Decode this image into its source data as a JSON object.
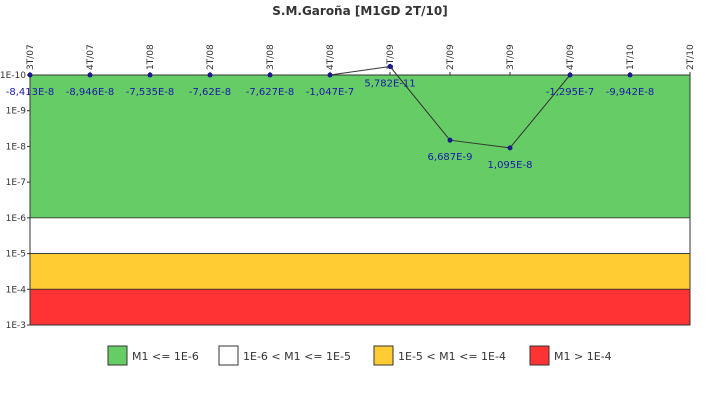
{
  "chart_data": {
    "type": "line",
    "title": "S.M.Garoña [M1GD 2T/10]",
    "x_categories": [
      "3T/07",
      "4T/07",
      "1T/08",
      "2T/08",
      "3T/08",
      "4T/08",
      "1T/09",
      "2T/09",
      "3T/09",
      "4T/09",
      "1T/10",
      "2T/10"
    ],
    "y_scale": "log",
    "y_axis_reversed": true,
    "y_ticks": [
      "1E-10",
      "1E-9",
      "1E-8",
      "1E-7",
      "1E-6",
      "1E-5",
      "1E-4",
      "1E-3"
    ],
    "ylim": [
      1e-10,
      0.001
    ],
    "grid": false,
    "series": [
      {
        "values": [
          -8.413e-08,
          -8.946e-08,
          -7.535e-08,
          -7.62e-08,
          -7.627e-08,
          -1.047e-07,
          5.782e-11,
          6.687e-09,
          1.095e-08,
          -1.295e-07,
          -9.942e-08,
          null
        ],
        "labels": [
          "-8,413E-8",
          "-8,946E-8",
          "-7,535E-8",
          "-7,62E-8",
          "-7,627E-8",
          "-1,047E-7",
          "5,782E-11",
          "6,687E-9",
          "1,095E-8",
          "-1,295E-7",
          "-9,942E-8",
          ""
        ],
        "color": "#333333",
        "marker_color": "#1a1a8c"
      }
    ],
    "bands": [
      {
        "label": "M1 <= 1E-6",
        "from": 1e-10,
        "to": 1e-06,
        "color": "#66cc66"
      },
      {
        "label": "1E-6 < M1 <= 1E-5",
        "from": 1e-06,
        "to": 1e-05,
        "color": "#ffffff"
      },
      {
        "label": "1E-5 < M1 <= 1E-4",
        "from": 1e-05,
        "to": 0.0001,
        "color": "#ffcc33"
      },
      {
        "label": "M1 > 1E-4",
        "from": 0.0001,
        "to": 0.001,
        "color": "#ff3333"
      }
    ],
    "legend_position": "bottom"
  }
}
